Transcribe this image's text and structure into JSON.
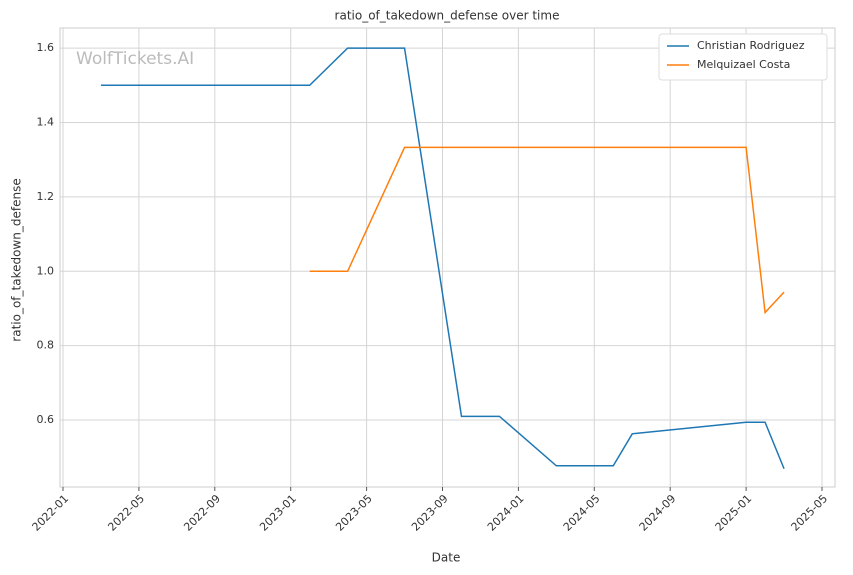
{
  "chart_data": {
    "type": "line",
    "title": "ratio_of_takedown_defense over time",
    "xlabel": "Date",
    "ylabel": "ratio_of_takedown_defense",
    "watermark": "WolfTickets.AI",
    "series": [
      {
        "name": "Christian Rodriguez",
        "color": "#1f77b4",
        "x": [
          "2022-03",
          "2023-02",
          "2023-04",
          "2023-07",
          "2023-10",
          "2023-12",
          "2024-03",
          "2024-06",
          "2024-07",
          "2025-01",
          "2025-02",
          "2025-03"
        ],
        "values": [
          1.5,
          1.5,
          1.6,
          1.6,
          0.61,
          0.61,
          0.477,
          0.477,
          0.563,
          0.594,
          0.594,
          0.469
        ]
      },
      {
        "name": "Melquizael Costa",
        "color": "#ff7f0e",
        "x": [
          "2023-02",
          "2023-04",
          "2023-07",
          "2025-01",
          "2025-02",
          "2025-03"
        ],
        "values": [
          1.0,
          1.0,
          1.333,
          1.333,
          0.889,
          0.944
        ]
      }
    ],
    "xlim": [
      "2022-01",
      "2025-05"
    ],
    "xticks": [
      "2022-01",
      "2022-05",
      "2022-09",
      "2023-01",
      "2023-05",
      "2023-09",
      "2024-01",
      "2024-05",
      "2024-09",
      "2025-01",
      "2025-05"
    ],
    "ylim": [
      0.42,
      1.654
    ],
    "yticks": [
      {
        "value": 0.6,
        "label": "0.6"
      },
      {
        "value": 0.8,
        "label": "0.8"
      },
      {
        "value": 1.0,
        "label": "1.0"
      },
      {
        "value": 1.2,
        "label": "1.2"
      },
      {
        "value": 1.4,
        "label": "1.4"
      },
      {
        "value": 1.6,
        "label": "1.6"
      }
    ],
    "grid": true,
    "legend": "upper right"
  }
}
